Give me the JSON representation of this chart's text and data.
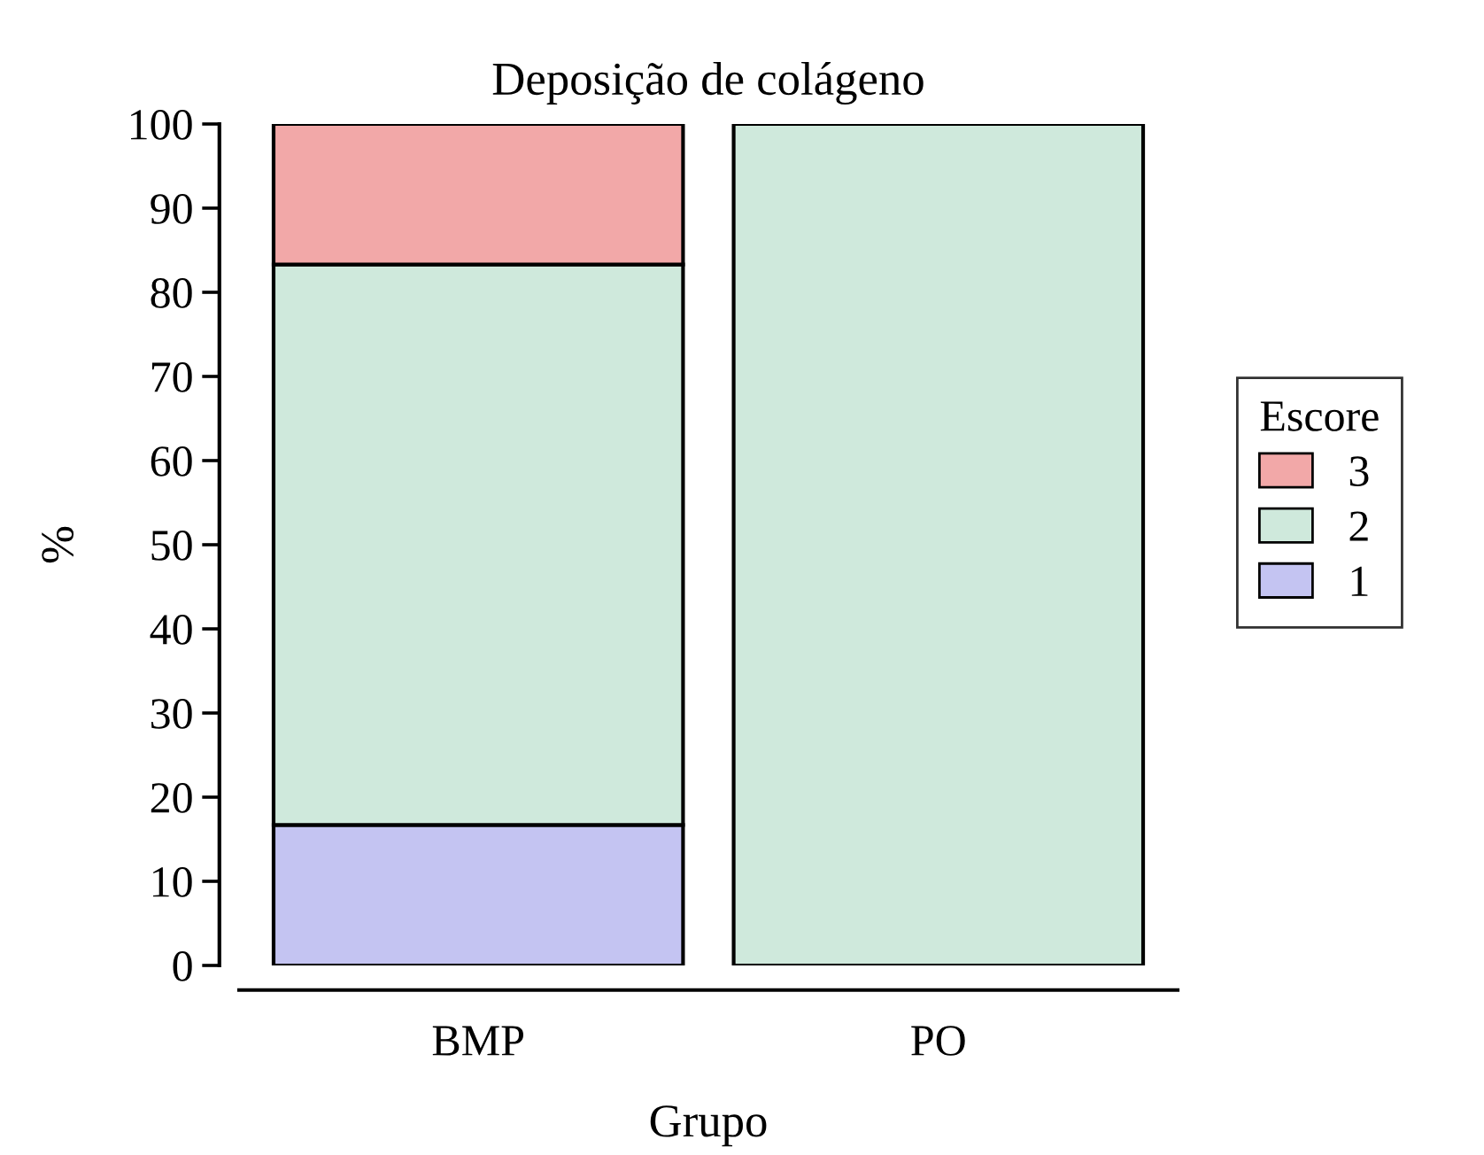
{
  "chart_data": {
    "type": "bar",
    "title": "Deposição de colágeno",
    "xlabel": "Grupo",
    "ylabel": "%",
    "legend_title": "Escore",
    "categories": [
      "BMP",
      "PO"
    ],
    "stacked": true,
    "series": [
      {
        "name": "1",
        "color": "#c4c4f2",
        "values": [
          16.7,
          null
        ]
      },
      {
        "name": "2",
        "color": "#cfe9dc",
        "values": [
          66.6,
          100
        ]
      },
      {
        "name": "3",
        "color": "#f2a8a8",
        "values": [
          16.7,
          null
        ]
      }
    ],
    "ylim": [
      0,
      100
    ],
    "yticks": [
      0,
      10,
      20,
      30,
      40,
      50,
      60,
      70,
      80,
      90,
      100
    ],
    "grid": false,
    "legend": "right"
  }
}
